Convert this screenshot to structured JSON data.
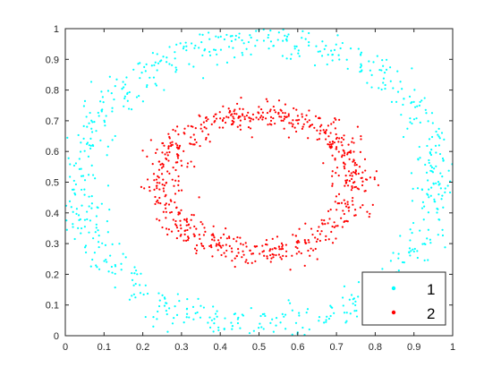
{
  "chart_data": {
    "type": "scatter",
    "title": "",
    "xlabel": "",
    "ylabel": "",
    "xlim": [
      0,
      1
    ],
    "ylim": [
      0,
      1
    ],
    "x_ticks": [
      "0",
      "0.1",
      "0.2",
      "0.3",
      "0.4",
      "0.5",
      "0.6",
      "0.7",
      "0.8",
      "0.9",
      "1"
    ],
    "y_ticks": [
      "0",
      "0.1",
      "0.2",
      "0.3",
      "0.4",
      "0.5",
      "0.6",
      "0.7",
      "0.8",
      "0.9",
      "1"
    ],
    "grid": false,
    "legend": {
      "placement": "bottom-right",
      "entries": [
        "1",
        "2"
      ]
    },
    "series": [
      {
        "name": "1",
        "color": "#00ffff",
        "shape": "ring",
        "center": [
          0.5,
          0.5
        ],
        "radius_x": 0.465,
        "radius_y": 0.465,
        "point_count": 700,
        "spread": 0.03
      },
      {
        "name": "2",
        "color": "#ff0000",
        "shape": "ring",
        "center": [
          0.5,
          0.5
        ],
        "radius_x": 0.25,
        "radius_y": 0.225,
        "point_count": 700,
        "spread": 0.025
      }
    ]
  }
}
